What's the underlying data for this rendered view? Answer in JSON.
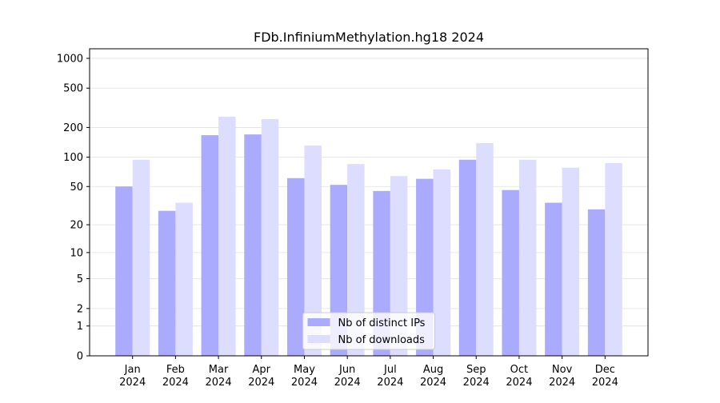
{
  "chart_data": {
    "type": "bar",
    "title": "FDb.InfiniumMethylation.hg18 2024",
    "categories": [
      "Jan\n2024",
      "Feb\n2024",
      "Mar\n2024",
      "Apr\n2024",
      "May\n2024",
      "Jun\n2024",
      "Jul\n2024",
      "Aug\n2024",
      "Sep\n2024",
      "Oct\n2024",
      "Nov\n2024",
      "Dec\n2024"
    ],
    "series": [
      {
        "name": "Nb of distinct IPs",
        "color": "#aaaaff",
        "values": [
          50,
          28,
          167,
          170,
          61,
          52,
          45,
          60,
          94,
          46,
          34,
          29
        ]
      },
      {
        "name": "Nb of downloads",
        "color": "#ddddff",
        "values": [
          94,
          34,
          257,
          243,
          131,
          85,
          64,
          75,
          139,
          94,
          78,
          87
        ]
      }
    ],
    "yscale": "log1p",
    "ylim": [
      0,
      1249
    ],
    "yticks": [
      0,
      1,
      2,
      5,
      10,
      20,
      50,
      100,
      200,
      500,
      1000
    ],
    "grid": true,
    "legend": "lower center"
  }
}
